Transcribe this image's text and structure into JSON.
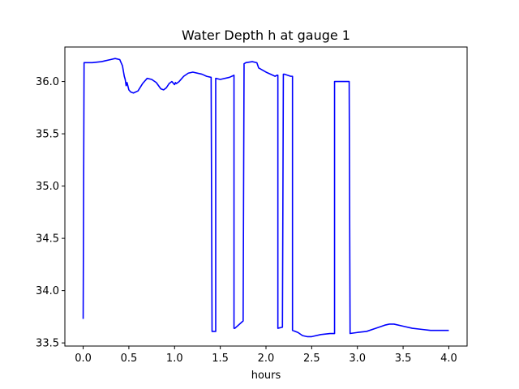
{
  "chart_data": {
    "type": "line",
    "title": "Water Depth h at gauge 1",
    "xlabel": "hours",
    "ylabel": "",
    "xlim": [
      -0.2,
      4.2
    ],
    "ylim": [
      33.47,
      36.33
    ],
    "xticks": [
      0.0,
      0.5,
      1.0,
      1.5,
      2.0,
      2.5,
      3.0,
      3.5,
      4.0
    ],
    "xtick_labels": [
      "0.0",
      "0.5",
      "1.0",
      "1.5",
      "2.0",
      "2.5",
      "3.0",
      "3.5",
      "4.0"
    ],
    "yticks": [
      33.5,
      34.0,
      34.5,
      35.0,
      35.5,
      36.0
    ],
    "ytick_labels": [
      "33.5",
      "34.0",
      "34.5",
      "35.0",
      "35.5",
      "36.0"
    ],
    "grid": false,
    "series": [
      {
        "color": "#0000ff",
        "x": [
          0.0,
          0.01,
          0.1,
          0.2,
          0.3,
          0.35,
          0.4,
          0.43,
          0.45,
          0.46,
          0.47,
          0.48,
          0.5,
          0.52,
          0.55,
          0.6,
          0.65,
          0.7,
          0.75,
          0.8,
          0.85,
          0.88,
          0.91,
          0.94,
          0.97,
          1.0,
          1.01,
          1.02,
          1.05,
          1.1,
          1.15,
          1.2,
          1.3,
          1.35,
          1.4,
          1.41,
          1.41,
          1.45,
          1.45,
          1.5,
          1.6,
          1.65,
          1.65,
          1.66,
          1.75,
          1.76,
          1.76,
          1.78,
          1.85,
          1.9,
          1.92,
          2.0,
          2.1,
          2.12,
          2.13,
          2.13,
          2.18,
          2.19,
          2.2,
          2.27,
          2.29,
          2.29,
          2.35,
          2.4,
          2.45,
          2.5,
          2.6,
          2.7,
          2.75,
          2.75,
          2.8,
          2.88,
          2.91,
          2.91,
          2.92,
          3.0,
          3.1,
          3.2,
          3.3,
          3.35,
          3.4,
          3.5,
          3.6,
          3.7,
          3.8,
          3.9,
          4.0
        ],
        "y": [
          33.73,
          36.18,
          36.18,
          36.19,
          36.21,
          36.22,
          36.21,
          36.15,
          36.05,
          36.02,
          35.96,
          35.99,
          35.92,
          35.9,
          35.89,
          35.91,
          35.98,
          36.03,
          36.02,
          35.99,
          35.93,
          35.92,
          35.94,
          35.98,
          36.0,
          35.97,
          35.99,
          35.98,
          36.0,
          36.05,
          36.08,
          36.09,
          36.07,
          36.05,
          36.04,
          33.61,
          33.61,
          33.61,
          36.03,
          36.02,
          36.04,
          36.06,
          33.64,
          33.64,
          33.71,
          36.13,
          36.17,
          36.18,
          36.19,
          36.18,
          36.13,
          36.09,
          36.05,
          36.06,
          36.06,
          33.64,
          33.65,
          36.07,
          36.07,
          36.05,
          36.05,
          33.62,
          33.6,
          33.57,
          33.56,
          33.56,
          33.58,
          33.59,
          33.59,
          36.0,
          36.0,
          36.0,
          36.0,
          36.0,
          33.59,
          33.6,
          33.61,
          33.64,
          33.67,
          33.68,
          33.68,
          33.66,
          33.64,
          33.63,
          33.62,
          33.62,
          33.62
        ]
      }
    ]
  }
}
